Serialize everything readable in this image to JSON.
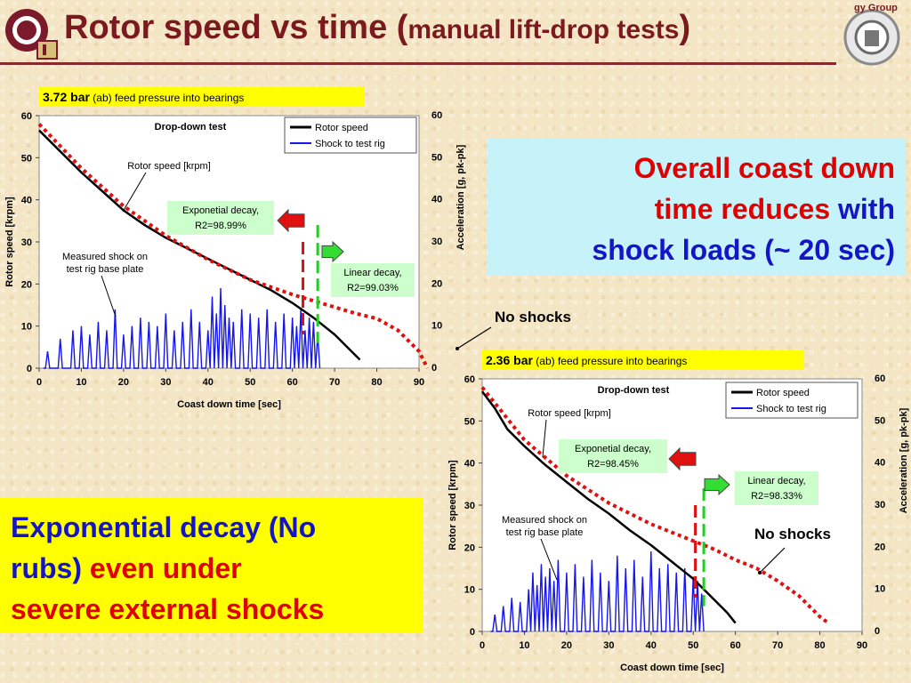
{
  "title": {
    "main": "Rotor speed vs time (",
    "sub": "manual lift-drop tests",
    "close": ")"
  },
  "logo_right_text": "gy Group",
  "callout_right": {
    "line1_red": "Overall coast down",
    "line2_red": "time reduces",
    "line2_blue": " with",
    "line3_blue": "shock loads (~ 20 sec)"
  },
  "callout_left": {
    "line1_blue": "Exponential decay (No",
    "line2_blue": "rubs)",
    "line2_red": " even under",
    "line3_red": "severe external shocks"
  },
  "colors": {
    "title": "#7a1a1f",
    "rotor": "#000000",
    "shock": "#1515ee",
    "fit": "#e01010",
    "red_marker": "#e01010",
    "green_marker": "#22cc22",
    "label_box": "#ccffcc",
    "header_box": "#ffff00"
  },
  "chart_data": [
    {
      "type": "line",
      "header_bold": "3.72 bar",
      "header_rest": " (ab) feed pressure into bearings",
      "inner_title": "Drop-down test",
      "xlabel": "Coast down time [sec]",
      "ylabel": "Rotor speed [krpm]",
      "y2label": "Acceleration [g, pk-pk]",
      "xlim": [
        0,
        90
      ],
      "ylim": [
        0,
        60
      ],
      "y2lim": [
        0,
        60
      ],
      "x_ticks": [
        "0",
        "10",
        "20",
        "30",
        "40",
        "50",
        "60",
        "70",
        "80",
        "90"
      ],
      "y_ticks": [
        "0",
        "10",
        "20",
        "30",
        "40",
        "50",
        "60"
      ],
      "y2_ticks": [
        "0",
        "10",
        "20",
        "30",
        "40",
        "50",
        "60"
      ],
      "legend": [
        "Rotor speed",
        "Shock to test rig"
      ],
      "legend_position": "top-right",
      "annotations": {
        "rotor_label": "Rotor speed [krpm]",
        "shock_label1": "Measured shock on",
        "shock_label2": "test rig base plate",
        "exp_label1": "Exponetial decay,",
        "exp_label2": "R2=98.99%",
        "lin_label1": "Linear decay,",
        "lin_label2": "R2=99.03%"
      },
      "markers": {
        "red_x": 62.5,
        "green_x": 66
      },
      "series": [
        {
          "name": "Rotor speed",
          "x": [
            0,
            5,
            10,
            15,
            20,
            25,
            30,
            35,
            40,
            45,
            50,
            55,
            60,
            65,
            70,
            73,
            76
          ],
          "y": [
            56.5,
            51.5,
            46.5,
            42,
            37.5,
            34,
            31,
            28.5,
            26,
            23.5,
            21,
            18.5,
            15.5,
            12,
            8,
            5,
            2
          ]
        },
        {
          "name": "Exponential fit",
          "x": [
            0,
            10,
            20,
            30,
            40,
            50,
            60,
            65,
            70,
            75,
            80,
            85,
            90,
            92
          ],
          "y": [
            58,
            47.5,
            38.5,
            31.5,
            25.8,
            21,
            17.5,
            16,
            14.5,
            13,
            11.8,
            9,
            4,
            0
          ]
        },
        {
          "name": "Shock to test rig",
          "x": [
            2,
            5,
            8,
            10,
            12,
            14,
            16,
            18,
            20,
            22,
            24,
            26,
            28,
            30,
            32,
            34,
            36,
            38,
            40,
            41,
            42,
            43,
            44,
            45,
            46,
            48,
            50,
            52,
            54,
            56,
            58,
            60,
            61,
            62,
            63,
            64,
            65,
            66
          ],
          "y": [
            4,
            7,
            9,
            10,
            8,
            11,
            9,
            14,
            8,
            10,
            12,
            11,
            10,
            13,
            9,
            11,
            14,
            11,
            9,
            17,
            13,
            19,
            15,
            12,
            11,
            14,
            13,
            12,
            14,
            11,
            13,
            12,
            10,
            14,
            9,
            12,
            11,
            8
          ]
        }
      ]
    },
    {
      "type": "line",
      "header_bold": "2.36 bar",
      "header_rest": " (ab) feed pressure into bearings",
      "inner_title": "Drop-down test",
      "xlabel": "Coast down time [sec]",
      "ylabel": "Rotor speed [krpm]",
      "y2label": "Acceleration [g, pk-pk]",
      "xlim": [
        0,
        90
      ],
      "ylim": [
        0,
        60
      ],
      "y2lim": [
        0,
        60
      ],
      "x_ticks": [
        "0",
        "10",
        "20",
        "30",
        "40",
        "50",
        "60",
        "70",
        "80",
        "90"
      ],
      "y_ticks": [
        "0",
        "10",
        "20",
        "30",
        "40",
        "50",
        "60"
      ],
      "y2_ticks": [
        "0",
        "10",
        "20",
        "30",
        "40",
        "50",
        "60"
      ],
      "legend": [
        "Rotor speed",
        "Shock to test rig"
      ],
      "legend_position": "top-right",
      "annotations": {
        "rotor_label": "Rotor speed [krpm]",
        "shock_label1": "Measured shock on",
        "shock_label2": "test rig base plate",
        "exp_label1": "Exponetial decay,",
        "exp_label2": "R2=98.45%",
        "lin_label1": "Linear decay,",
        "lin_label2": "R2=98.33%"
      },
      "markers": {
        "red_x": 50.5,
        "green_x": 52.5
      },
      "series": [
        {
          "name": "Rotor speed",
          "x": [
            0,
            3,
            6,
            8,
            10,
            15,
            20,
            25,
            30,
            35,
            40,
            45,
            50,
            55,
            58,
            60
          ],
          "y": [
            57,
            53,
            48,
            46,
            44,
            39.5,
            35.5,
            31.5,
            28,
            24,
            20.5,
            16.5,
            12.5,
            7.5,
            4.5,
            2
          ]
        },
        {
          "name": "Exponential fit",
          "x": [
            0,
            10,
            20,
            30,
            40,
            50,
            55,
            60,
            65,
            70,
            75,
            80,
            82
          ],
          "y": [
            58,
            45.5,
            37,
            30.5,
            25.5,
            21.5,
            19.5,
            17,
            15,
            12,
            8.5,
            3.5,
            2
          ]
        },
        {
          "name": "Shock to test rig",
          "x": [
            3,
            5,
            7,
            9,
            11,
            12,
            13,
            14,
            15,
            16,
            17,
            18,
            20,
            22,
            24,
            26,
            28,
            30,
            32,
            34,
            36,
            38,
            40,
            42,
            44,
            46,
            48,
            50,
            51,
            52
          ],
          "y": [
            4,
            6,
            8,
            7,
            10,
            14,
            11,
            16,
            13,
            15,
            12,
            17,
            14,
            16,
            13,
            17,
            14,
            12,
            18,
            15,
            17,
            13,
            19,
            15,
            16,
            14,
            15,
            13,
            12,
            9
          ]
        }
      ]
    }
  ],
  "no_shocks_label": "No shocks"
}
